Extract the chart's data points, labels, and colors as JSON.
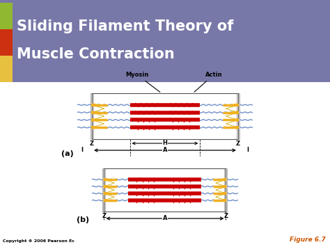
{
  "title_line1": "Sliding Filament Theory of",
  "title_line2": "Muscle Contraction",
  "title_bg": "#7878a8",
  "title_color": "#ffffff",
  "title_fontsize": 15,
  "sq_colors": [
    "#e8c040",
    "#cc3010",
    "#90b830"
  ],
  "bg_color": "#ffffff",
  "fig_label": "Figure 6.7",
  "copyright": "Copyright © 2006 Pearson Ec",
  "label_a": "(a)",
  "label_b": "(b)",
  "actin_color": "#7090c8",
  "myosin_color": "#cc0000",
  "yellow_color": "#f0b020",
  "zline_color": "#aaaaaa",
  "arrow_color": "#222222"
}
